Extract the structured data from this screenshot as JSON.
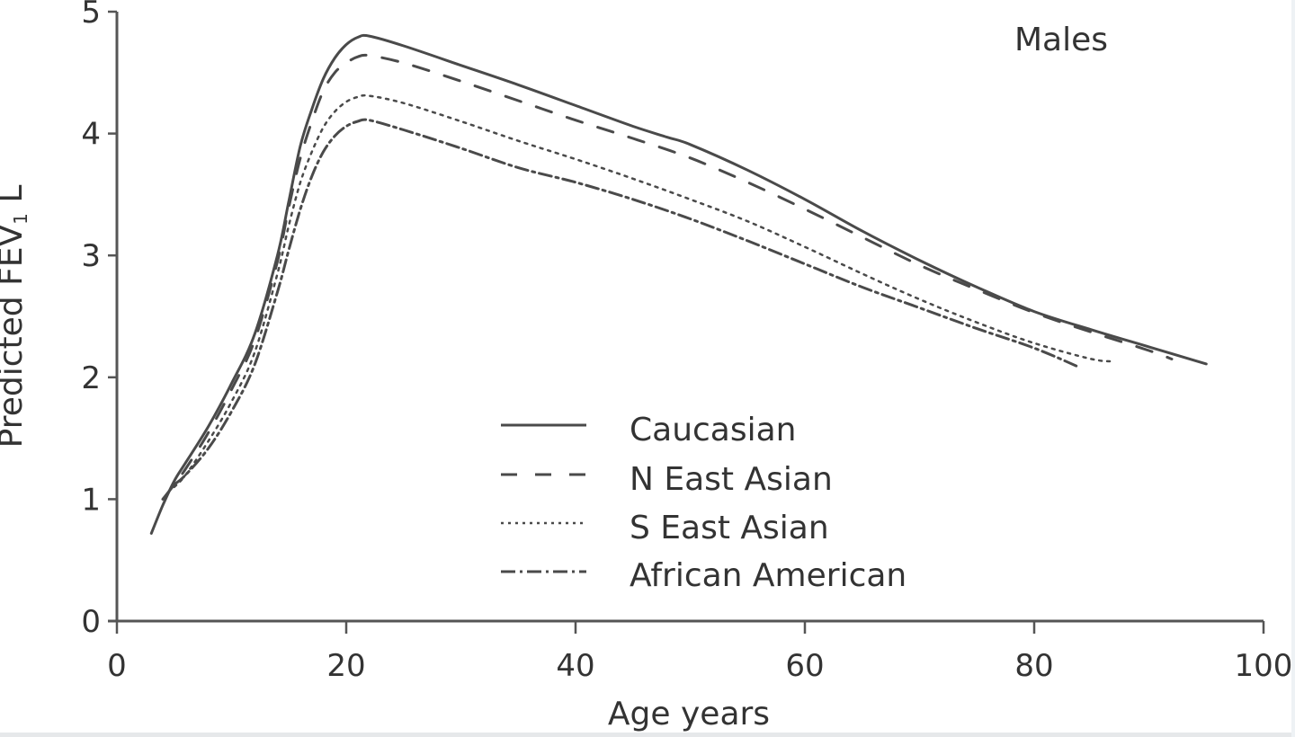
{
  "chart_data": {
    "type": "line",
    "title": "Males",
    "xlabel": "Age years",
    "ylabel": "Predicted FEV₁ L",
    "xlim": [
      0,
      100
    ],
    "ylim": [
      0,
      5
    ],
    "xticks": [
      0,
      20,
      40,
      60,
      80,
      100
    ],
    "yticks": [
      0,
      1,
      2,
      3,
      4,
      5
    ],
    "grid": false,
    "legend_position": "lower center (inside plot)",
    "series": [
      {
        "name": "Caucasian",
        "style": "solid",
        "x": [
          3,
          4,
          5,
          6,
          8,
          10,
          12,
          14,
          15,
          16,
          17,
          18,
          19,
          20,
          21,
          22,
          25,
          30,
          35,
          40,
          45,
          48,
          50,
          55,
          60,
          65,
          70,
          75,
          80,
          85,
          90,
          95
        ],
        "y": [
          0.72,
          0.95,
          1.15,
          1.3,
          1.6,
          1.95,
          2.35,
          3.0,
          3.45,
          3.9,
          4.2,
          4.45,
          4.62,
          4.73,
          4.79,
          4.8,
          4.72,
          4.56,
          4.4,
          4.23,
          4.06,
          3.97,
          3.91,
          3.7,
          3.46,
          3.2,
          2.96,
          2.74,
          2.54,
          2.39,
          2.25,
          2.11
        ]
      },
      {
        "name": "N East Asian",
        "style": "dashed",
        "x": [
          4,
          5,
          6,
          8,
          10,
          12,
          14,
          15,
          16,
          17,
          18,
          19,
          20,
          21,
          22,
          25,
          30,
          35,
          40,
          45,
          50,
          55,
          60,
          65,
          70,
          75,
          80,
          85,
          90,
          92
        ],
        "y": [
          1.0,
          1.12,
          1.25,
          1.55,
          1.9,
          2.3,
          2.95,
          3.4,
          3.8,
          4.1,
          4.35,
          4.5,
          4.58,
          4.63,
          4.64,
          4.58,
          4.43,
          4.27,
          4.11,
          3.96,
          3.8,
          3.6,
          3.38,
          3.15,
          2.92,
          2.72,
          2.53,
          2.37,
          2.22,
          2.15
        ]
      },
      {
        "name": "S East Asian",
        "style": "dotted",
        "x": [
          5,
          6,
          8,
          10,
          12,
          14,
          15,
          16,
          17,
          18,
          19,
          20,
          21,
          22,
          25,
          30,
          35,
          40,
          45,
          50,
          55,
          60,
          65,
          70,
          75,
          80,
          85,
          87
        ],
        "y": [
          1.1,
          1.2,
          1.48,
          1.8,
          2.2,
          2.85,
          3.25,
          3.6,
          3.85,
          4.05,
          4.18,
          4.26,
          4.3,
          4.31,
          4.25,
          4.1,
          3.94,
          3.79,
          3.63,
          3.46,
          3.28,
          3.07,
          2.85,
          2.64,
          2.45,
          2.28,
          2.15,
          2.13
        ]
      },
      {
        "name": "African American",
        "style": "dash-dot",
        "x": [
          5,
          6,
          8,
          10,
          12,
          14,
          15,
          16,
          17,
          18,
          19,
          20,
          21,
          22,
          25,
          30,
          35,
          40,
          45,
          50,
          55,
          60,
          65,
          70,
          75,
          80,
          84
        ],
        "y": [
          1.12,
          1.2,
          1.42,
          1.72,
          2.1,
          2.7,
          3.05,
          3.38,
          3.65,
          3.85,
          3.98,
          4.06,
          4.1,
          4.11,
          4.03,
          3.88,
          3.72,
          3.6,
          3.46,
          3.3,
          3.12,
          2.93,
          2.74,
          2.57,
          2.4,
          2.24,
          2.08
        ]
      }
    ]
  },
  "labels": {
    "panel_title": "Males",
    "x_axis_title": "Age years",
    "y_axis_title_main": "Predicted FEV",
    "y_axis_title_sub": "1",
    "y_axis_title_unit": " L"
  },
  "legend": [
    {
      "label": "Caucasian",
      "style": "solid"
    },
    {
      "label": "N East Asian",
      "style": "dashed"
    },
    {
      "label": "S East Asian",
      "style": "dotted"
    },
    {
      "label": "African American",
      "style": "dash-dot"
    }
  ],
  "colors": {
    "line": "#4a4a4a",
    "axis": "#555555",
    "text": "#333333",
    "background": "#ffffff"
  }
}
